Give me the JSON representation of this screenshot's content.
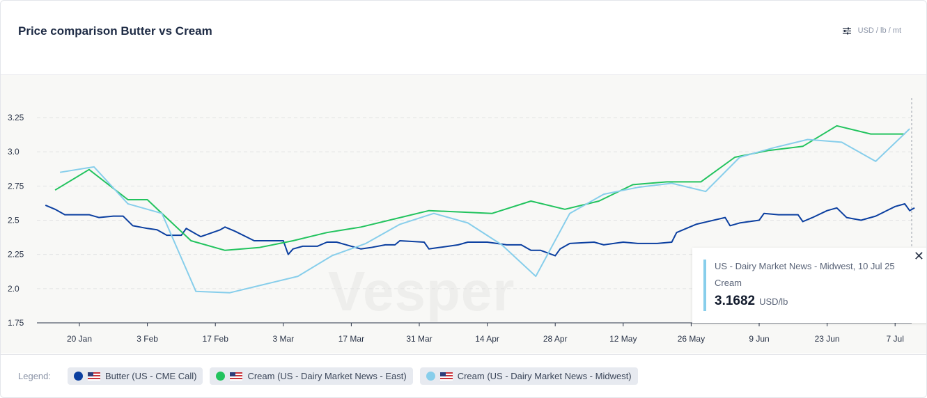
{
  "header": {
    "title": "Price comparison Butter vs Cream",
    "units": "USD / lb / mt",
    "units_icon": "sliders-icon"
  },
  "watermark": "Vesper",
  "legend": {
    "label": "Legend:",
    "items": [
      {
        "label": "Butter (US - CME Call)",
        "color": "#0b3fa0"
      },
      {
        "label": "Cream (US - Dairy Market News - East)",
        "color": "#22c35e"
      },
      {
        "label": "Cream (US - Dairy Market News - Midwest)",
        "color": "#87ceeb"
      }
    ]
  },
  "tooltip": {
    "source": "US - Dairy Market News - Midwest, 10 Jul 25",
    "name": "Cream",
    "value": "3.1682",
    "unit": "USD/lb"
  },
  "chart_data": {
    "type": "line",
    "title": "Price comparison Butter vs Cream",
    "ylim": [
      1.75,
      3.25
    ],
    "yticks": [
      "3.25",
      "3.0",
      "2.75",
      "2.5",
      "2.25",
      "2.0",
      "1.75"
    ],
    "xticks": [
      [
        "2025-01-20",
        "20 Jan"
      ],
      [
        "2025-02-03",
        "3 Feb"
      ],
      [
        "2025-02-17",
        "17 Feb"
      ],
      [
        "2025-03-03",
        "3 Mar"
      ],
      [
        "2025-03-17",
        "17 Mar"
      ],
      [
        "2025-03-31",
        "31 Mar"
      ],
      [
        "2025-04-14",
        "14 Apr"
      ],
      [
        "2025-04-28",
        "28 Apr"
      ],
      [
        "2025-05-12",
        "12 May"
      ],
      [
        "2025-05-26",
        "26 May"
      ],
      [
        "2025-06-09",
        "9 Jun"
      ],
      [
        "2025-06-23",
        "23 Jun"
      ],
      [
        "2025-07-07",
        "7 Jul"
      ]
    ],
    "grid": true,
    "series": [
      {
        "name": "Butter (US - CME Call)",
        "color": "#0b3fa0",
        "points": [
          [
            "2025-01-13",
            2.61
          ],
          [
            "2025-01-15",
            2.58
          ],
          [
            "2025-01-17",
            2.54
          ],
          [
            "2025-01-20",
            2.54
          ],
          [
            "2025-01-22",
            2.54
          ],
          [
            "2025-01-24",
            2.52
          ],
          [
            "2025-01-27",
            2.53
          ],
          [
            "2025-01-29",
            2.53
          ],
          [
            "2025-01-31",
            2.46
          ],
          [
            "2025-02-03",
            2.44
          ],
          [
            "2025-02-05",
            2.43
          ],
          [
            "2025-02-07",
            2.39
          ],
          [
            "2025-02-10",
            2.39
          ],
          [
            "2025-02-11",
            2.44
          ],
          [
            "2025-02-13",
            2.4
          ],
          [
            "2025-02-14",
            2.38
          ],
          [
            "2025-02-18",
            2.43
          ],
          [
            "2025-02-19",
            2.45
          ],
          [
            "2025-02-21",
            2.42
          ],
          [
            "2025-02-25",
            2.35
          ],
          [
            "2025-02-28",
            2.35
          ],
          [
            "2025-03-03",
            2.35
          ],
          [
            "2025-03-04",
            2.25
          ],
          [
            "2025-03-05",
            2.29
          ],
          [
            "2025-03-07",
            2.31
          ],
          [
            "2025-03-10",
            2.31
          ],
          [
            "2025-03-12",
            2.34
          ],
          [
            "2025-03-14",
            2.34
          ],
          [
            "2025-03-17",
            2.31
          ],
          [
            "2025-03-19",
            2.29
          ],
          [
            "2025-03-21",
            2.3
          ],
          [
            "2025-03-24",
            2.32
          ],
          [
            "2025-03-26",
            2.32
          ],
          [
            "2025-03-27",
            2.35
          ],
          [
            "2025-04-01",
            2.34
          ],
          [
            "2025-04-02",
            2.29
          ],
          [
            "2025-04-04",
            2.3
          ],
          [
            "2025-04-08",
            2.32
          ],
          [
            "2025-04-10",
            2.34
          ],
          [
            "2025-04-14",
            2.34
          ],
          [
            "2025-04-16",
            2.33
          ],
          [
            "2025-04-18",
            2.32
          ],
          [
            "2025-04-21",
            2.32
          ],
          [
            "2025-04-23",
            2.28
          ],
          [
            "2025-04-25",
            2.28
          ],
          [
            "2025-04-28",
            2.24
          ],
          [
            "2025-04-29",
            2.29
          ],
          [
            "2025-05-01",
            2.33
          ],
          [
            "2025-05-06",
            2.34
          ],
          [
            "2025-05-08",
            2.32
          ],
          [
            "2025-05-12",
            2.34
          ],
          [
            "2025-05-15",
            2.33
          ],
          [
            "2025-05-19",
            2.33
          ],
          [
            "2025-05-22",
            2.34
          ],
          [
            "2025-05-23",
            2.41
          ],
          [
            "2025-05-27",
            2.47
          ],
          [
            "2025-06-02",
            2.52
          ],
          [
            "2025-06-03",
            2.46
          ],
          [
            "2025-06-05",
            2.48
          ],
          [
            "2025-06-09",
            2.5
          ],
          [
            "2025-06-10",
            2.55
          ],
          [
            "2025-06-13",
            2.54
          ],
          [
            "2025-06-17",
            2.54
          ],
          [
            "2025-06-18",
            2.49
          ],
          [
            "2025-06-20",
            2.52
          ],
          [
            "2025-06-23",
            2.57
          ],
          [
            "2025-06-25",
            2.59
          ],
          [
            "2025-06-27",
            2.52
          ],
          [
            "2025-06-30",
            2.5
          ],
          [
            "2025-07-01",
            2.51
          ],
          [
            "2025-07-03",
            2.53
          ],
          [
            "2025-07-07",
            2.6
          ],
          [
            "2025-07-08",
            2.61
          ],
          [
            "2025-07-09",
            2.62
          ],
          [
            "2025-07-10",
            2.57
          ],
          [
            "2025-07-11",
            2.59
          ]
        ]
      },
      {
        "name": "Cream (US - Dairy Market News - East)",
        "color": "#22c35e",
        "points": [
          [
            "2025-01-15",
            2.72
          ],
          [
            "2025-01-22",
            2.87
          ],
          [
            "2025-01-30",
            2.65
          ],
          [
            "2025-02-03",
            2.65
          ],
          [
            "2025-02-12",
            2.35
          ],
          [
            "2025-02-19",
            2.28
          ],
          [
            "2025-02-26",
            2.3
          ],
          [
            "2025-03-05",
            2.35
          ],
          [
            "2025-03-12",
            2.41
          ],
          [
            "2025-03-19",
            2.45
          ],
          [
            "2025-03-26",
            2.51
          ],
          [
            "2025-04-02",
            2.57
          ],
          [
            "2025-04-15",
            2.55
          ],
          [
            "2025-04-23",
            2.64
          ],
          [
            "2025-04-30",
            2.58
          ],
          [
            "2025-05-07",
            2.64
          ],
          [
            "2025-05-14",
            2.76
          ],
          [
            "2025-05-21",
            2.78
          ],
          [
            "2025-05-28",
            2.78
          ],
          [
            "2025-06-04",
            2.96
          ],
          [
            "2025-06-11",
            3.01
          ],
          [
            "2025-06-18",
            3.04
          ],
          [
            "2025-06-25",
            3.19
          ],
          [
            "2025-07-02",
            3.13
          ],
          [
            "2025-07-09",
            3.13
          ]
        ]
      },
      {
        "name": "Cream (US - Dairy Market News - Midwest)",
        "color": "#87ceeb",
        "points": [
          [
            "2025-01-16",
            2.85
          ],
          [
            "2025-01-23",
            2.89
          ],
          [
            "2025-01-30",
            2.62
          ],
          [
            "2025-02-06",
            2.55
          ],
          [
            "2025-02-13",
            1.98
          ],
          [
            "2025-02-20",
            1.97
          ],
          [
            "2025-02-27",
            2.03
          ],
          [
            "2025-03-06",
            2.09
          ],
          [
            "2025-03-13",
            2.24
          ],
          [
            "2025-03-20",
            2.33
          ],
          [
            "2025-03-27",
            2.47
          ],
          [
            "2025-04-03",
            2.55
          ],
          [
            "2025-04-10",
            2.48
          ],
          [
            "2025-04-17",
            2.32
          ],
          [
            "2025-04-24",
            2.09
          ],
          [
            "2025-05-01",
            2.55
          ],
          [
            "2025-05-08",
            2.69
          ],
          [
            "2025-05-15",
            2.74
          ],
          [
            "2025-05-22",
            2.77
          ],
          [
            "2025-05-29",
            2.71
          ],
          [
            "2025-06-05",
            2.96
          ],
          [
            "2025-06-12",
            3.03
          ],
          [
            "2025-06-19",
            3.09
          ],
          [
            "2025-06-26",
            3.07
          ],
          [
            "2025-07-03",
            2.93
          ],
          [
            "2025-07-10",
            3.1682
          ]
        ]
      }
    ]
  }
}
